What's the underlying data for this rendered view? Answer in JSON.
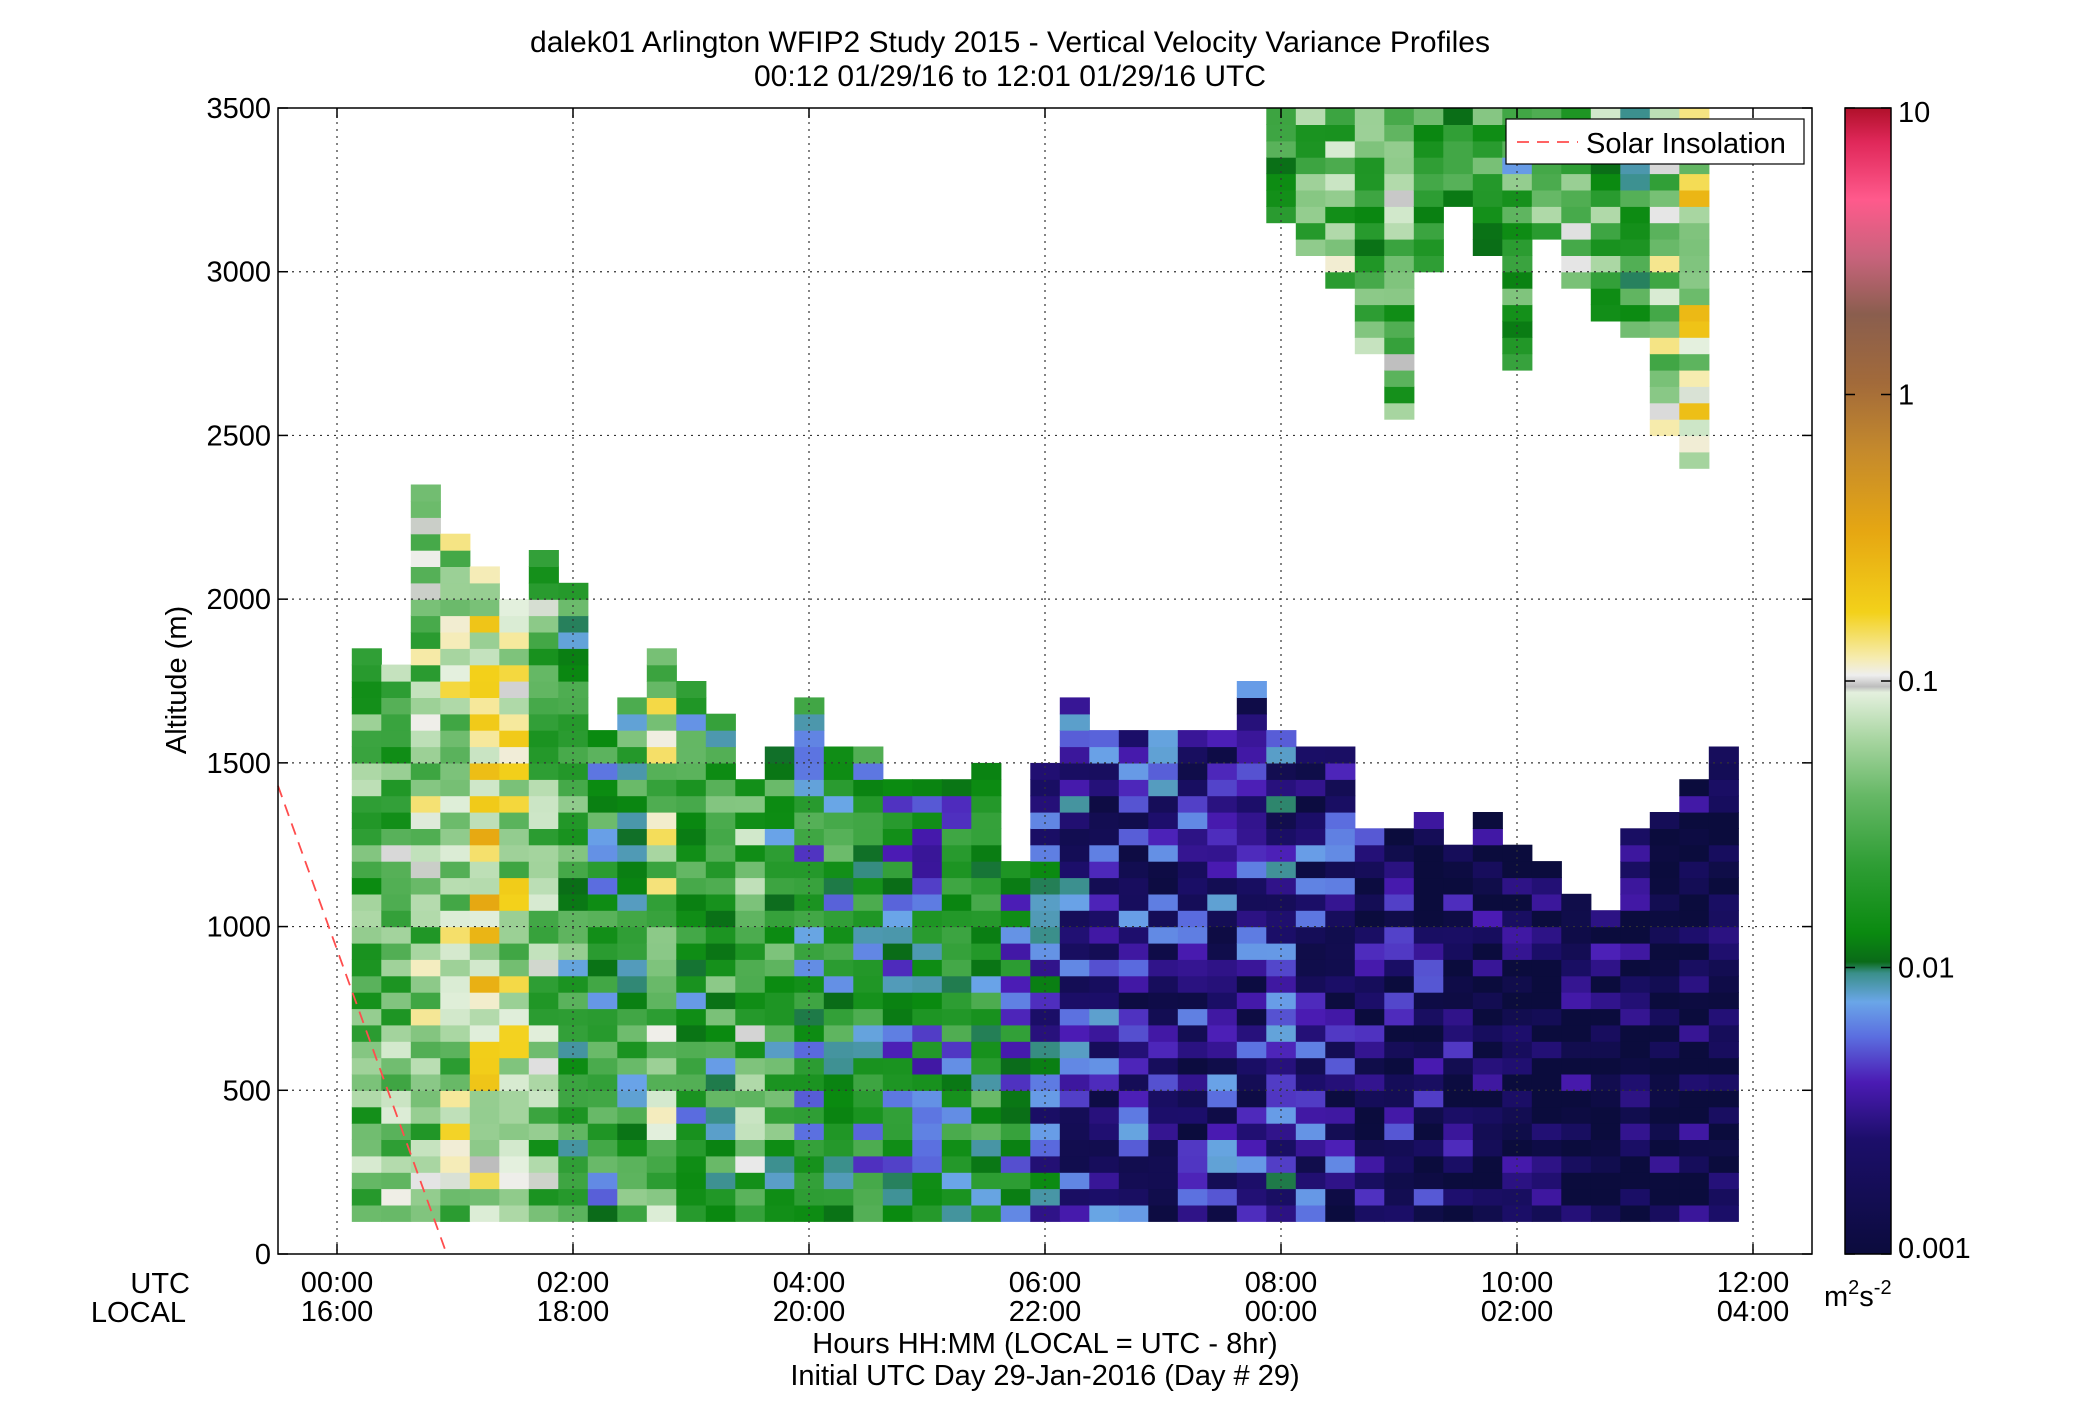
{
  "chart_data": {
    "type": "heatmap",
    "title": "dalek01 Arlington WFIP2 Study 2015 - Vertical Velocity Variance Profiles",
    "subtitle": "00:12 01/29/16 to 12:01 01/29/16  UTC",
    "ylabel": "Altitude (m)",
    "xlabel": "Hours HH:MM  (LOCAL = UTC - 8hr)",
    "xlabel2": "Initial UTC Day 29-Jan-2016 (Day # 29)",
    "x_axis_rows": [
      "UTC",
      "LOCAL"
    ],
    "x_ticks_utc": [
      "00:00",
      "02:00",
      "04:00",
      "06:00",
      "08:00",
      "10:00",
      "12:00"
    ],
    "x_ticks_local": [
      "16:00",
      "18:00",
      "20:00",
      "22:00",
      "00:00",
      "02:00",
      "04:00"
    ],
    "x_tick_hours": [
      0,
      2,
      4,
      6,
      8,
      10,
      12
    ],
    "xlim_hours": [
      -0.5,
      12.5
    ],
    "y_ticks": [
      "0",
      "500",
      "1000",
      "1500",
      "2000",
      "2500",
      "3000",
      "3500"
    ],
    "ylim": [
      0,
      3500
    ],
    "grid": true,
    "colorbar": {
      "scale": "log",
      "ticks": [
        "0.001",
        "0.01",
        "0.1",
        "1",
        "10"
      ],
      "range": [
        0.001,
        10
      ],
      "units": "m²s⁻²",
      "units_base": "m",
      "units_sup1": "2",
      "units_mid": "s",
      "units_sup2": "-2"
    },
    "legend": {
      "entries": [
        "Solar Insolation"
      ],
      "placement": "top-right"
    },
    "series": [
      {
        "name": "Solar Insolation",
        "style": "dashed",
        "color": "#ff4d4d",
        "x_hours": [
          -0.5,
          0.93
        ],
        "y": [
          1430,
          0
        ]
      }
    ],
    "cell_size": {
      "dt_hours": 0.25,
      "dz_m": 50
    },
    "columns": [
      {
        "t": 0.25,
        "z0": 100,
        "z1": 1850,
        "lvl": 0.03
      },
      {
        "t": 0.5,
        "z0": 100,
        "z1": 1800,
        "lvl": 0.04
      },
      {
        "t": 0.75,
        "z0": 100,
        "z1": 2350,
        "lvl": 0.05
      },
      {
        "t": 1.0,
        "z0": 100,
        "z1": 2200,
        "lvl": 0.06
      },
      {
        "t": 1.25,
        "z0": 100,
        "z1": 2100,
        "lvl": 0.12
      },
      {
        "t": 1.5,
        "z0": 100,
        "z1": 2000,
        "lvl": 0.07
      },
      {
        "t": 1.75,
        "z0": 100,
        "z1": 2150,
        "lvl": 0.04
      },
      {
        "t": 2.0,
        "z0": 100,
        "z1": 2050,
        "lvl": 0.02
      },
      {
        "t": 2.25,
        "z0": 100,
        "z1": 1600,
        "lvl": 0.015
      },
      {
        "t": 2.5,
        "z0": 100,
        "z1": 1700,
        "lvl": 0.02
      },
      {
        "t": 2.75,
        "z0": 100,
        "z1": 1850,
        "lvl": 0.06
      },
      {
        "t": 3.0,
        "z0": 100,
        "z1": 1750,
        "lvl": 0.015
      },
      {
        "t": 3.25,
        "z0": 100,
        "z1": 1650,
        "lvl": 0.02
      },
      {
        "t": 3.5,
        "z0": 100,
        "z1": 1450,
        "lvl": 0.04
      },
      {
        "t": 3.75,
        "z0": 100,
        "z1": 1550,
        "lvl": 0.02
      },
      {
        "t": 4.0,
        "z0": 100,
        "z1": 1700,
        "lvl": 0.012
      },
      {
        "t": 4.25,
        "z0": 100,
        "z1": 1550,
        "lvl": 0.015
      },
      {
        "t": 4.5,
        "z0": 100,
        "z1": 1550,
        "lvl": 0.012
      },
      {
        "t": 4.75,
        "z0": 100,
        "z1": 1450,
        "lvl": 0.01
      },
      {
        "t": 5.0,
        "z0": 100,
        "z1": 1450,
        "lvl": 0.008
      },
      {
        "t": 5.25,
        "z0": 100,
        "z1": 1450,
        "lvl": 0.012
      },
      {
        "t": 5.5,
        "z0": 100,
        "z1": 1500,
        "lvl": 0.02
      },
      {
        "t": 5.75,
        "z0": 100,
        "z1": 1200,
        "lvl": 0.01
      },
      {
        "t": 6.0,
        "z0": 100,
        "z1": 1500,
        "lvl": 0.006
      },
      {
        "t": 6.25,
        "z0": 100,
        "z1": 1700,
        "lvl": 0.004
      },
      {
        "t": 6.5,
        "z0": 100,
        "z1": 1600,
        "lvl": 0.003
      },
      {
        "t": 6.75,
        "z0": 100,
        "z1": 1600,
        "lvl": 0.003
      },
      {
        "t": 7.0,
        "z0": 100,
        "z1": 1600,
        "lvl": 0.003
      },
      {
        "t": 7.25,
        "z0": 100,
        "z1": 1600,
        "lvl": 0.0025
      },
      {
        "t": 7.5,
        "z0": 100,
        "z1": 1600,
        "lvl": 0.003
      },
      {
        "t": 7.75,
        "z0": 100,
        "z1": 1750,
        "lvl": 0.003
      },
      {
        "t": 8.0,
        "z0": 100,
        "z1": 1600,
        "lvl": 0.004
      },
      {
        "t": 8.25,
        "z0": 100,
        "z1": 1550,
        "lvl": 0.003
      },
      {
        "t": 8.5,
        "z0": 100,
        "z1": 1550,
        "lvl": 0.0025
      },
      {
        "t": 8.75,
        "z0": 100,
        "z1": 1300,
        "lvl": 0.002
      },
      {
        "t": 9.0,
        "z0": 100,
        "z1": 1300,
        "lvl": 0.002
      },
      {
        "t": 9.25,
        "z0": 100,
        "z1": 1350,
        "lvl": 0.002
      },
      {
        "t": 9.5,
        "z0": 100,
        "z1": 1250,
        "lvl": 0.0018
      },
      {
        "t": 9.75,
        "z0": 100,
        "z1": 1350,
        "lvl": 0.0015
      },
      {
        "t": 10.0,
        "z0": 100,
        "z1": 1250,
        "lvl": 0.0015
      },
      {
        "t": 10.25,
        "z0": 100,
        "z1": 1200,
        "lvl": 0.0015
      },
      {
        "t": 10.5,
        "z0": 100,
        "z1": 1100,
        "lvl": 0.0015
      },
      {
        "t": 10.75,
        "z0": 100,
        "z1": 1050,
        "lvl": 0.0015
      },
      {
        "t": 11.0,
        "z0": 100,
        "z1": 1300,
        "lvl": 0.0013
      },
      {
        "t": 11.25,
        "z0": 100,
        "z1": 1350,
        "lvl": 0.0013
      },
      {
        "t": 11.5,
        "z0": 100,
        "z1": 1450,
        "lvl": 0.0013
      },
      {
        "t": 11.75,
        "z0": 100,
        "z1": 1550,
        "lvl": 0.0013
      },
      {
        "t": 8.0,
        "z0": 3150,
        "z1": 3500,
        "lvl": 0.015
      },
      {
        "t": 8.25,
        "z0": 3050,
        "z1": 3500,
        "lvl": 0.03
      },
      {
        "t": 8.5,
        "z0": 2950,
        "z1": 3500,
        "lvl": 0.04
      },
      {
        "t": 8.75,
        "z0": 2750,
        "z1": 3500,
        "lvl": 0.03
      },
      {
        "t": 9.0,
        "z0": 2550,
        "z1": 3500,
        "lvl": 0.035
      },
      {
        "t": 9.25,
        "z0": 3000,
        "z1": 3500,
        "lvl": 0.02
      },
      {
        "t": 9.5,
        "z0": 3200,
        "z1": 3500,
        "lvl": 0.015
      },
      {
        "t": 9.75,
        "z0": 3050,
        "z1": 3500,
        "lvl": 0.03
      },
      {
        "t": 10.0,
        "z0": 2700,
        "z1": 3500,
        "lvl": 0.02
      },
      {
        "t": 10.25,
        "z0": 3100,
        "z1": 3500,
        "lvl": 0.05
      },
      {
        "t": 10.5,
        "z0": 2950,
        "z1": 3500,
        "lvl": 0.04
      },
      {
        "t": 10.75,
        "z0": 2850,
        "z1": 3500,
        "lvl": 0.03
      },
      {
        "t": 11.0,
        "z0": 2800,
        "z1": 3500,
        "lvl": 0.02
      },
      {
        "t": 11.25,
        "z0": 2500,
        "z1": 3500,
        "lvl": 0.06
      },
      {
        "t": 11.5,
        "z0": 2400,
        "z1": 3500,
        "lvl": 0.1
      }
    ]
  }
}
